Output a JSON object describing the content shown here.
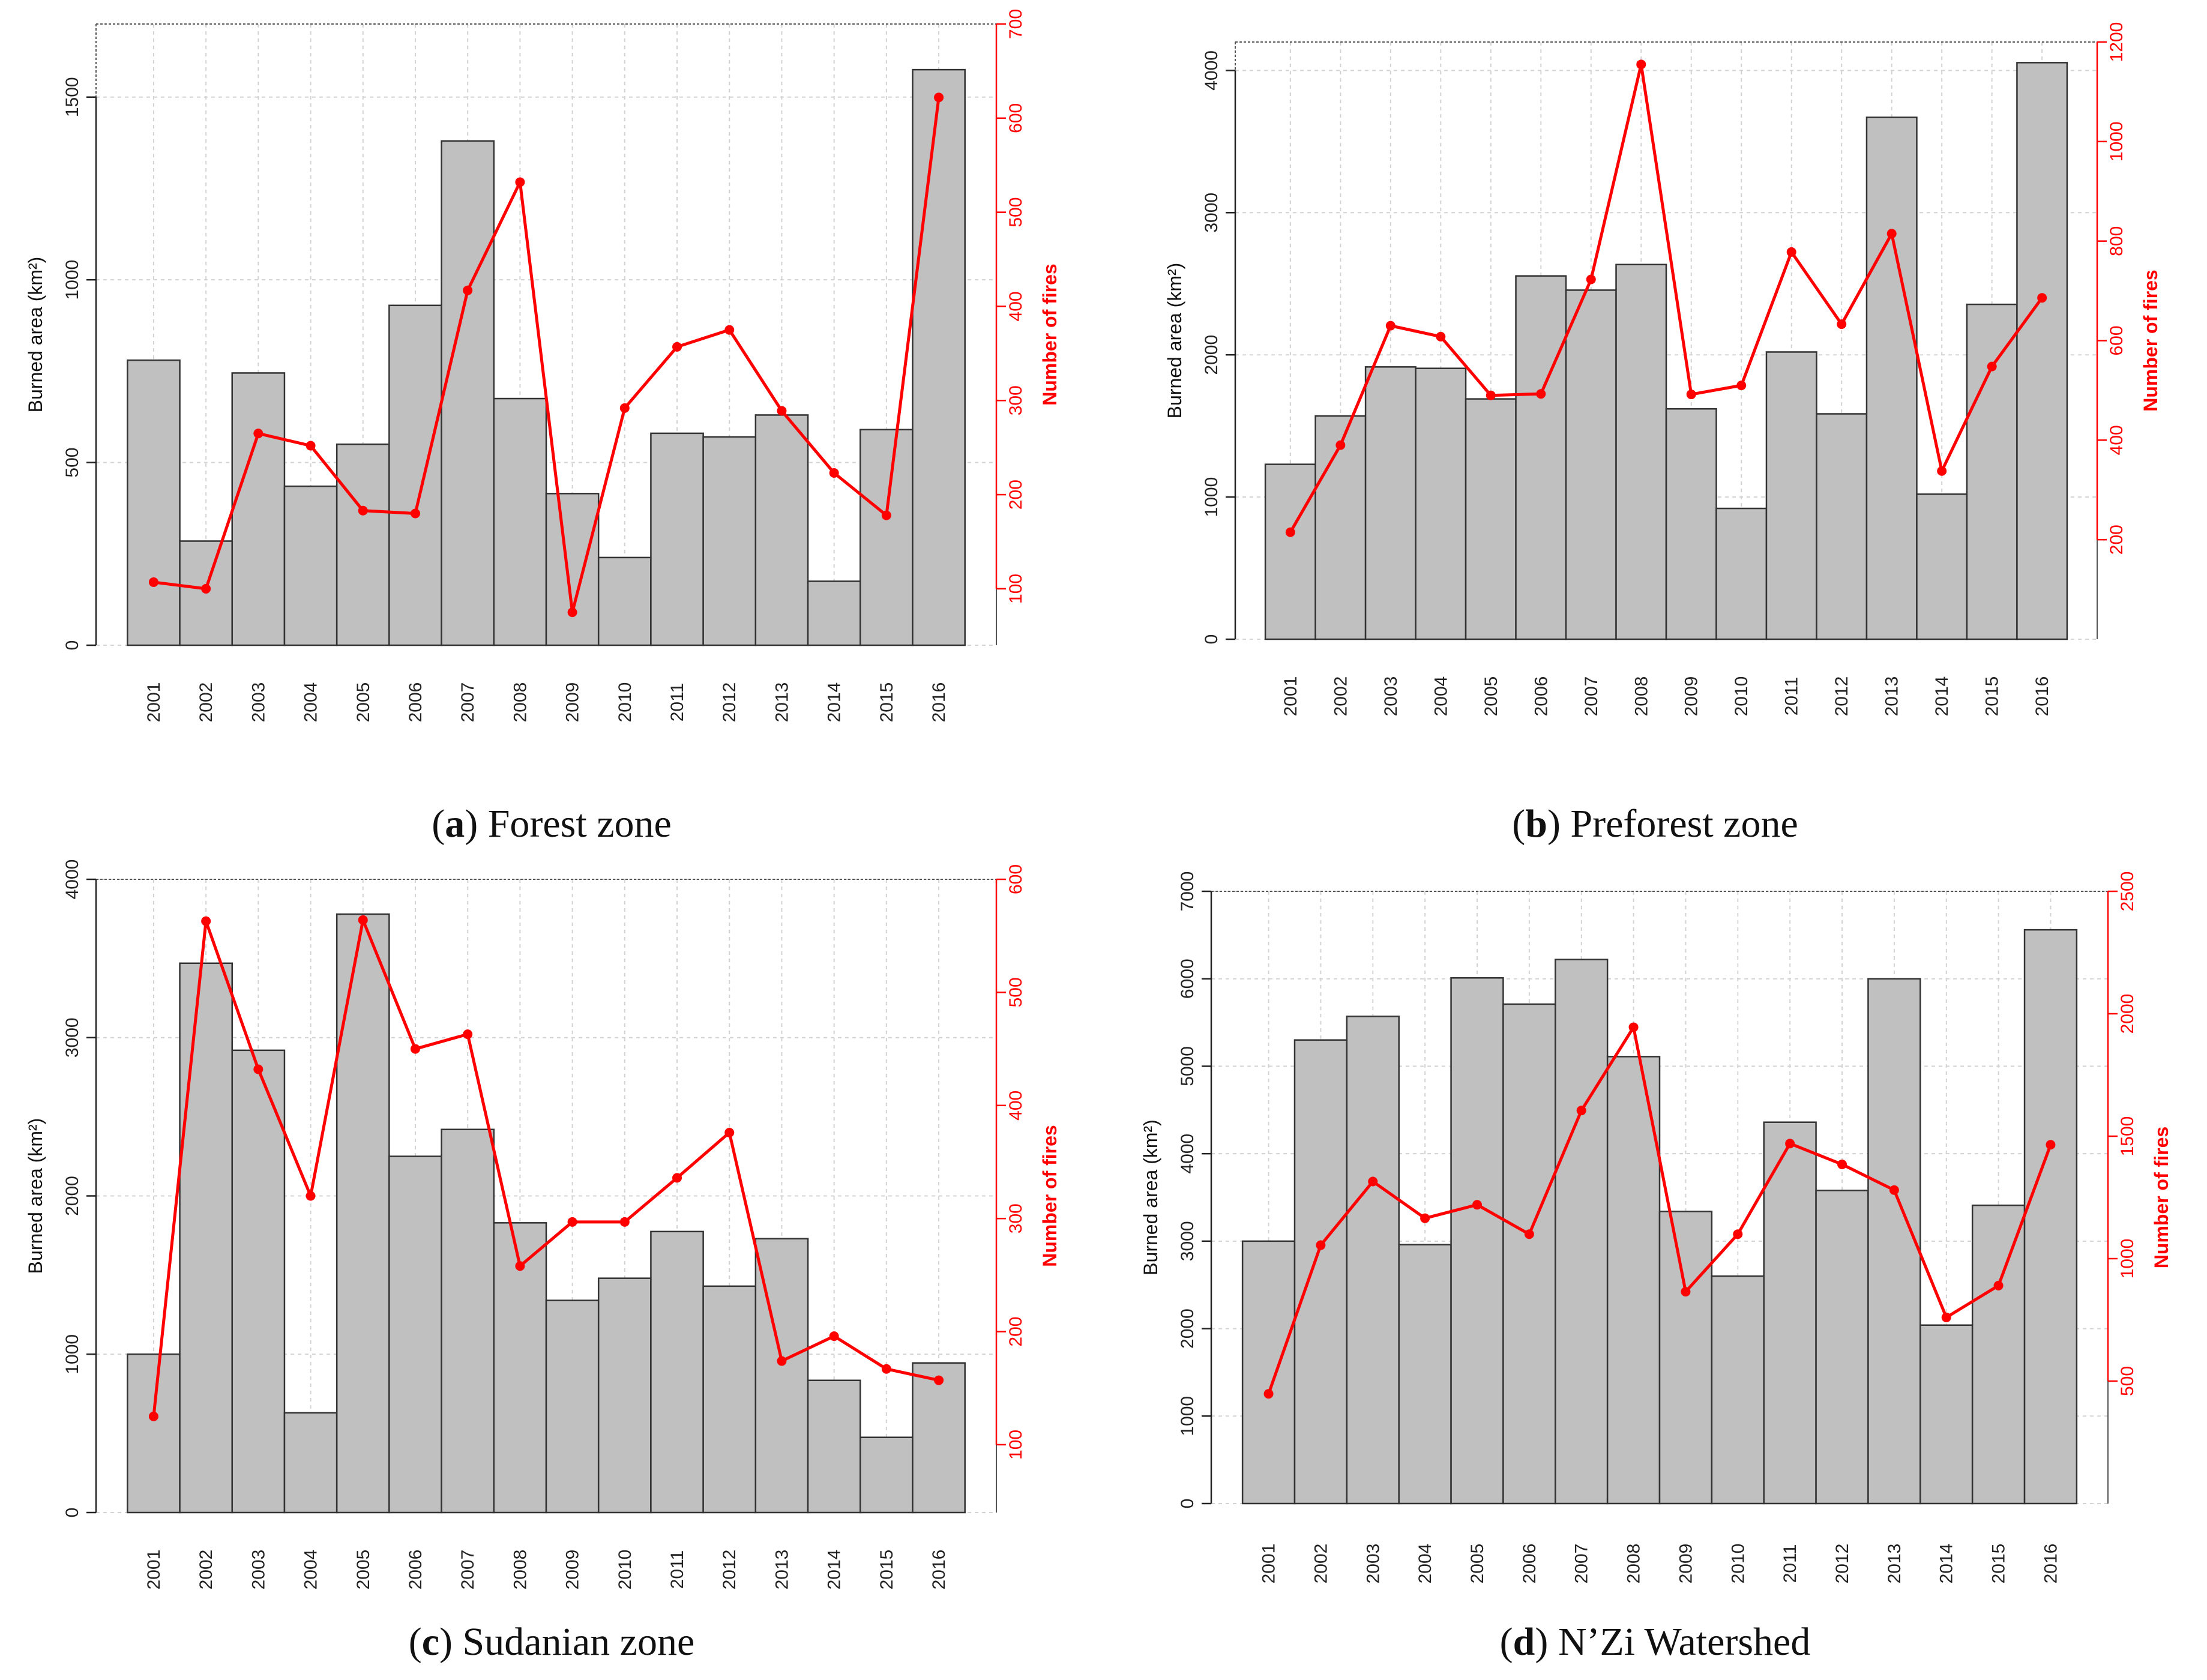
{
  "figure": {
    "left_axis_label": "Burned area (km²)",
    "right_axis_label": "Number of fires",
    "colors": {
      "bar": "#c0c0c0",
      "bar_edge": "#333333",
      "line": "#ff0000",
      "grid": "#d3d3d3",
      "axis": "#222222"
    }
  },
  "chart_data": [
    {
      "id": "a",
      "type": "bar",
      "caption_letter": "a",
      "caption_text": "Forest zone",
      "caption_open": "(",
      "caption_close": ")",
      "categories": [
        "2001",
        "2002",
        "2003",
        "2004",
        "2005",
        "2006",
        "2007",
        "2008",
        "2009",
        "2010",
        "2011",
        "2012",
        "2013",
        "2014",
        "2015",
        "2016"
      ],
      "series": [
        {
          "name": "Burned area (km²)",
          "axis": "left",
          "type": "bar",
          "values": [
            780,
            285,
            745,
            435,
            550,
            930,
            1380,
            675,
            415,
            240,
            580,
            570,
            630,
            175,
            590,
            1575
          ]
        },
        {
          "name": "Number of fires",
          "axis": "right",
          "type": "line",
          "values": [
            107,
            100,
            265,
            252,
            183,
            180,
            417,
            532,
            75,
            292,
            357,
            375,
            289,
            223,
            178,
            622
          ]
        }
      ],
      "left_ticks": [
        "0",
        "500",
        "1000",
        "1500"
      ],
      "left_tick_values": [
        0,
        500,
        1000,
        1500
      ],
      "ylim_left": [
        0,
        1700
      ],
      "right_ticks": [
        "100",
        "200",
        "300",
        "400",
        "500",
        "600",
        "700"
      ],
      "right_tick_values": [
        100,
        200,
        300,
        400,
        500,
        600,
        700
      ],
      "ylim_right": [
        40,
        700
      ]
    },
    {
      "id": "b",
      "type": "bar",
      "caption_letter": "b",
      "caption_text": "Preforest zone",
      "caption_open": "(",
      "caption_close": ")",
      "categories": [
        "2001",
        "2002",
        "2003",
        "2004",
        "2005",
        "2006",
        "2007",
        "2008",
        "2009",
        "2010",
        "2011",
        "2012",
        "2013",
        "2014",
        "2015",
        "2016"
      ],
      "series": [
        {
          "name": "Burned area (km²)",
          "axis": "left",
          "type": "bar",
          "values": [
            1230,
            1570,
            1915,
            1905,
            1690,
            2555,
            2455,
            2635,
            1620,
            920,
            2020,
            1585,
            3670,
            1020,
            2355,
            4055
          ]
        },
        {
          "name": "Number of fires",
          "axis": "right",
          "type": "line",
          "values": [
            215,
            390,
            630,
            608,
            490,
            493,
            723,
            1155,
            492,
            510,
            778,
            633,
            815,
            338,
            548,
            686
          ]
        }
      ],
      "left_ticks": [
        "0",
        "1000",
        "2000",
        "3000",
        "4000"
      ],
      "left_tick_values": [
        0,
        1000,
        2000,
        3000,
        4000
      ],
      "ylim_left": [
        0,
        4200
      ],
      "right_ticks": [
        "200",
        "400",
        "600",
        "800",
        "1000",
        "1200"
      ],
      "right_tick_values": [
        200,
        400,
        600,
        800,
        1000,
        1200
      ],
      "ylim_right": [
        0,
        1200
      ]
    },
    {
      "id": "c",
      "type": "bar",
      "caption_letter": "c",
      "caption_text": "Sudanian zone",
      "caption_open": "(",
      "caption_close": ")",
      "categories": [
        "2001",
        "2002",
        "2003",
        "2004",
        "2005",
        "2006",
        "2007",
        "2008",
        "2009",
        "2010",
        "2011",
        "2012",
        "2013",
        "2014",
        "2015",
        "2016"
      ],
      "series": [
        {
          "name": "Burned area (km²)",
          "axis": "left",
          "type": "bar",
          "values": [
            1000,
            3470,
            2920,
            630,
            3780,
            2250,
            2420,
            1830,
            1340,
            1480,
            1775,
            1430,
            1730,
            835,
            475,
            945
          ]
        },
        {
          "name": "Number of fires",
          "axis": "right",
          "type": "line",
          "values": [
            125,
            563,
            432,
            320,
            564,
            450,
            463,
            258,
            297,
            297,
            336,
            376,
            174,
            196,
            167,
            157
          ]
        }
      ],
      "left_ticks": [
        "0",
        "1000",
        "2000",
        "3000",
        "4000"
      ],
      "left_tick_values": [
        0,
        1000,
        2000,
        3000,
        4000
      ],
      "ylim_left": [
        0,
        4000
      ],
      "right_ticks": [
        "100",
        "200",
        "300",
        "400",
        "500",
        "600"
      ],
      "right_tick_values": [
        100,
        200,
        300,
        400,
        500,
        600
      ],
      "ylim_right": [
        40,
        600
      ]
    },
    {
      "id": "d",
      "type": "bar",
      "caption_letter": "d",
      "caption_text": "N’Zi Watershed",
      "caption_open": "(",
      "caption_close": ")",
      "categories": [
        "2001",
        "2002",
        "2003",
        "2004",
        "2005",
        "2006",
        "2007",
        "2008",
        "2009",
        "2010",
        "2011",
        "2012",
        "2013",
        "2014",
        "2015",
        "2016"
      ],
      "series": [
        {
          "name": "Burned area (km²)",
          "axis": "left",
          "type": "bar",
          "values": [
            3000,
            5300,
            5570,
            2960,
            6010,
            5710,
            6220,
            5110,
            3340,
            2600,
            4360,
            3580,
            6000,
            2040,
            3410,
            6560
          ]
        },
        {
          "name": "Number of fires",
          "axis": "right",
          "type": "line",
          "values": [
            448,
            1055,
            1315,
            1165,
            1220,
            1100,
            1605,
            1945,
            865,
            1100,
            1470,
            1385,
            1280,
            760,
            890,
            1465
          ]
        }
      ],
      "left_ticks": [
        "0",
        "1000",
        "2000",
        "3000",
        "4000",
        "5000",
        "6000",
        "7000"
      ],
      "left_tick_values": [
        0,
        1000,
        2000,
        3000,
        4000,
        5000,
        6000,
        7000
      ],
      "ylim_left": [
        0,
        7000
      ],
      "right_ticks": [
        "500",
        "1000",
        "1500",
        "2000",
        "2500"
      ],
      "right_tick_values": [
        500,
        1000,
        1500,
        2000,
        2500
      ],
      "ylim_right": [
        0,
        2500
      ]
    }
  ]
}
